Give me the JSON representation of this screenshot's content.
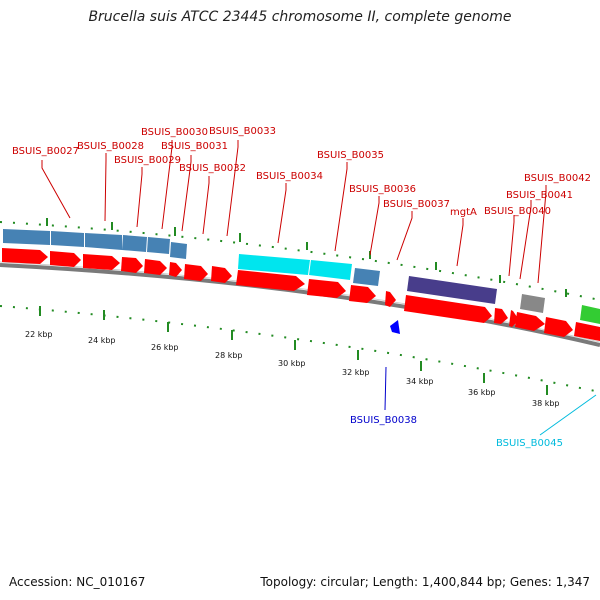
{
  "title": "Brucella suis ATCC 23445 chromosome II, complete genome",
  "footer": {
    "accession": "Accession: NC_010167",
    "summary": "Topology: circular; Length: 1,400,844 bp; Genes: 1,347"
  },
  "colors": {
    "cds_forward": "#ff0000",
    "steelblue": "#4682b4",
    "cyan": "#00e5ee",
    "darkslateblue": "#483d8b",
    "gray": "#888888",
    "green": "#33cc33",
    "blue": "#0000ff",
    "tick": "#228b22",
    "label_red": "#cc0000",
    "label_blue": "#0000cc",
    "label_cyan": "#00bbdd"
  },
  "scale": {
    "ticks": [
      {
        "label": "22 kbp",
        "kbp": 22
      },
      {
        "label": "24 kbp",
        "kbp": 24
      },
      {
        "label": "26 kbp",
        "kbp": 26
      },
      {
        "label": "28 kbp",
        "kbp": 28
      },
      {
        "label": "30 kbp",
        "kbp": 30
      },
      {
        "label": "32 kbp",
        "kbp": 32
      },
      {
        "label": "34 kbp",
        "kbp": 34
      },
      {
        "label": "36 kbp",
        "kbp": 36
      },
      {
        "label": "38 kbp",
        "kbp": 38
      }
    ]
  },
  "features": [
    {
      "label": "BSUIS_B0027",
      "color": "label_red",
      "track": "outer"
    },
    {
      "label": "BSUIS_B0028",
      "color": "label_red",
      "track": "outer"
    },
    {
      "label": "BSUIS_B0029",
      "color": "label_red",
      "track": "outer"
    },
    {
      "label": "BSUIS_B0030",
      "color": "label_red",
      "track": "outer"
    },
    {
      "label": "BSUIS_B0031",
      "color": "label_red",
      "track": "outer"
    },
    {
      "label": "BSUIS_B0032",
      "color": "label_red",
      "track": "outer"
    },
    {
      "label": "BSUIS_B0033",
      "color": "label_red",
      "track": "outer"
    },
    {
      "label": "BSUIS_B0034",
      "color": "label_red",
      "track": "outer"
    },
    {
      "label": "BSUIS_B0035",
      "color": "label_red",
      "track": "outer"
    },
    {
      "label": "BSUIS_B0036",
      "color": "label_red",
      "track": "outer"
    },
    {
      "label": "BSUIS_B0037",
      "color": "label_red",
      "track": "outer"
    },
    {
      "label": "mgtA",
      "color": "label_red",
      "track": "outer"
    },
    {
      "label": "BSUIS_B0040",
      "color": "label_red",
      "track": "outer"
    },
    {
      "label": "BSUIS_B0041",
      "color": "label_red",
      "track": "outer"
    },
    {
      "label": "BSUIS_B0042",
      "color": "label_red",
      "track": "outer"
    },
    {
      "label": "BSUIS_B0038",
      "color": "label_blue",
      "track": "inner"
    },
    {
      "label": "BSUIS_B0045",
      "color": "label_cyan",
      "track": "inner"
    }
  ]
}
